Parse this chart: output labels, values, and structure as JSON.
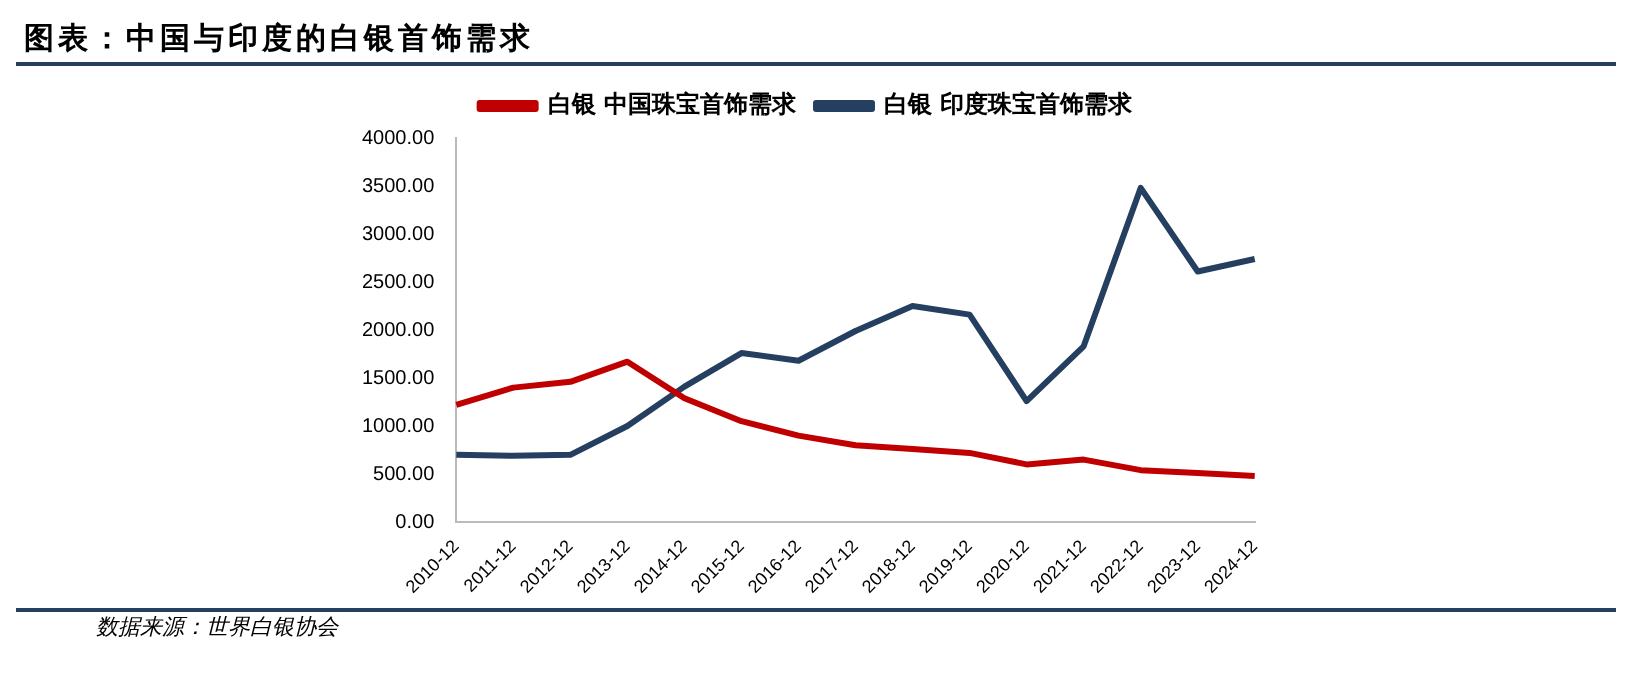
{
  "chart_data": {
    "type": "line",
    "title": "图表：中国与印度的白银首饰需求",
    "annotations": [
      "数据来源：世界白银协会"
    ],
    "categories": [
      "2010-12",
      "2011-12",
      "2012-12",
      "2013-12",
      "2014-12",
      "2015-12",
      "2016-12",
      "2017-12",
      "2018-12",
      "2019-12",
      "2020-12",
      "2021-12",
      "2022-12",
      "2023-12",
      "2024-12"
    ],
    "series": [
      {
        "name": "白银 中国珠宝首饰需求",
        "color": "#c00000",
        "values": [
          1220,
          1400,
          1460,
          1670,
          1290,
          1050,
          900,
          800,
          760,
          720,
          600,
          650,
          540,
          510,
          480
        ]
      },
      {
        "name": "白银 印度珠宝首饰需求",
        "color": "#243f60",
        "values": [
          700,
          690,
          700,
          1000,
          1410,
          1760,
          1680,
          1990,
          2250,
          2160,
          1260,
          1830,
          3480,
          2610,
          2740
        ]
      }
    ],
    "ylim": [
      0,
      4000
    ],
    "yticks": [
      {
        "value": 0,
        "label": "0.00"
      },
      {
        "value": 500,
        "label": "500.00"
      },
      {
        "value": 1000,
        "label": "1000.00"
      },
      {
        "value": 1500,
        "label": "1500.00"
      },
      {
        "value": 2000,
        "label": "2000.00"
      },
      {
        "value": 2500,
        "label": "2500.00"
      },
      {
        "value": 3000,
        "label": "3000.00"
      },
      {
        "value": 3500,
        "label": "3500.00"
      },
      {
        "value": 4000,
        "label": "4000.00"
      }
    ],
    "grid": false,
    "legend": "top",
    "marker": "none",
    "line_style": "solid"
  }
}
